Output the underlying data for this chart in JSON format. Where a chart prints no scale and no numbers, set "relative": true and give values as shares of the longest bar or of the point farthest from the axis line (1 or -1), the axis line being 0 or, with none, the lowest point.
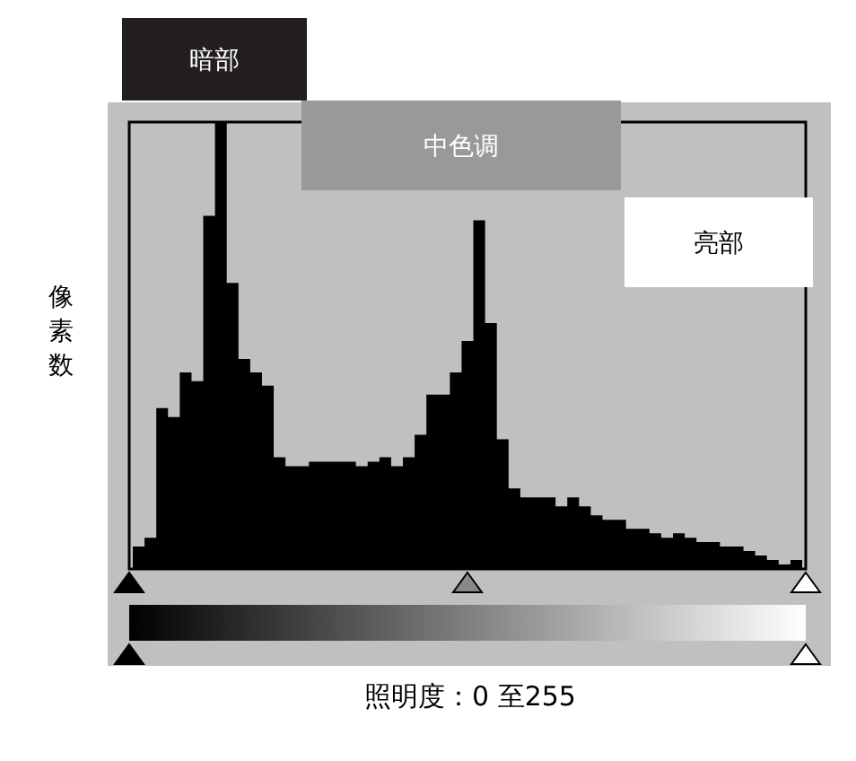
{
  "chart_data": {
    "type": "area",
    "relative": true,
    "color": "#000000",
    "xlabel": "照明度：0 至255",
    "ylabel": "像素数",
    "annotations": [
      "暗部",
      "中色调",
      "亮部"
    ],
    "categories": [
      null,
      null,
      null,
      null,
      null,
      null,
      null,
      null,
      null,
      null,
      null,
      null,
      null,
      null,
      null,
      null,
      null,
      null,
      null,
      null,
      null,
      null,
      null,
      null,
      null,
      null,
      null,
      null,
      null,
      null,
      null,
      null,
      null,
      null,
      null,
      null,
      null,
      null,
      null,
      null,
      null,
      null,
      null,
      null,
      null,
      null,
      null,
      null,
      null,
      null,
      null,
      null,
      null,
      null,
      null,
      null,
      null,
      null
    ],
    "values": [
      0.05,
      0.07,
      0.36,
      0.34,
      0.44,
      0.42,
      0.79,
      1,
      0.64,
      0.47,
      0.44,
      0.41,
      0.25,
      0.23,
      0.23,
      0.24,
      0.24,
      0.24,
      0.24,
      0.23,
      0.24,
      0.25,
      0.23,
      0.25,
      0.3,
      0.39,
      0.39,
      0.44,
      0.51,
      0.78,
      0.55,
      0.29,
      0.18,
      0.16,
      0.16,
      0.16,
      0.14,
      0.16,
      0.14,
      0.12,
      0.11,
      0.11,
      0.09,
      0.09,
      0.08,
      0.07,
      0.08,
      0.07,
      0.06,
      0.06,
      0.05,
      0.05,
      0.04,
      0.03,
      0.02,
      0.01,
      0.02,
      0.02
    ]
  }
}
